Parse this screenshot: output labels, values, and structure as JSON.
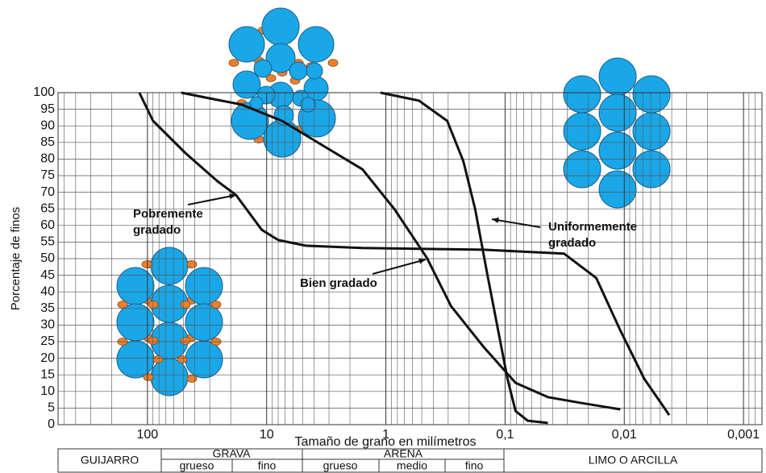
{
  "chart_data": {
    "type": "line",
    "y_label": "Porcentaje de finos",
    "x_label": "Tamaño de grano en milímetros",
    "log_x": true,
    "x_reversed": true,
    "grid": true,
    "minor_grid": true,
    "xlim": [
      562,
      0.0007
    ],
    "ylim": [
      0,
      100
    ],
    "xticks": [
      100,
      10,
      1,
      {
        "value": 0.1,
        "label": "0,1"
      },
      {
        "value": 0.01,
        "label": "0,01"
      },
      {
        "value": 0.001,
        "label": "0,001"
      }
    ],
    "yticks": [
      0,
      5,
      10,
      15,
      20,
      25,
      30,
      35,
      40,
      45,
      50,
      55,
      60,
      65,
      70,
      75,
      80,
      85,
      90,
      95,
      100
    ],
    "series": [
      {
        "color": "#111111",
        "x": [
          117,
          89.7,
          48,
          25.8,
          18.1,
          11,
          8.0,
          4.7,
          1.57,
          0.152,
          0.032,
          0.0172,
          0.0108,
          0.0068,
          0.0042
        ],
        "values": [
          100,
          91.5,
          81.8,
          73.3,
          69.2,
          58.7,
          55.6,
          53.9,
          53.2,
          52.7,
          51.5,
          44.2,
          28.4,
          13.8,
          2.9
        ]
      },
      {
        "color": "#111111",
        "x": [
          52,
          30.2,
          16.2,
          7.44,
          3.42,
          1.57,
          0.843,
          0.452,
          0.284,
          0.152,
          0.0817,
          0.0438,
          0.0236,
          0.0108
        ],
        "values": [
          100,
          98.3,
          96.4,
          91.5,
          84.2,
          76.9,
          64.8,
          50.2,
          35.7,
          23.5,
          12.6,
          8.3,
          6.6,
          4.6
        ]
      },
      {
        "color": "#111111",
        "x": [
          1.11,
          0.528,
          0.306,
          0.224,
          0.178,
          0.141,
          0.111,
          0.0955,
          0.0817,
          0.0647,
          0.0438
        ],
        "values": [
          100,
          97.6,
          91.5,
          79.4,
          64.8,
          45.4,
          26.0,
          13.8,
          4.1,
          1.2,
          0.5
        ]
      }
    ],
    "annotations": [
      {
        "lines": [
          "Pobremente",
          "gradado"
        ]
      },
      {
        "lines": [
          "Bien gradado"
        ]
      },
      {
        "lines": [
          "Uniformemente",
          "gradado"
        ]
      }
    ]
  },
  "soil_table": {
    "guijarro": "GUIJARRO",
    "grava": "GRAVA",
    "grava_grueso": "grueso",
    "grava_fino": "fino",
    "arena": "ARENA",
    "arena_grueso": "grueso",
    "arena_medio": "medio",
    "arena_fino": "fino",
    "limo": "LIMO O ARCILLA"
  }
}
